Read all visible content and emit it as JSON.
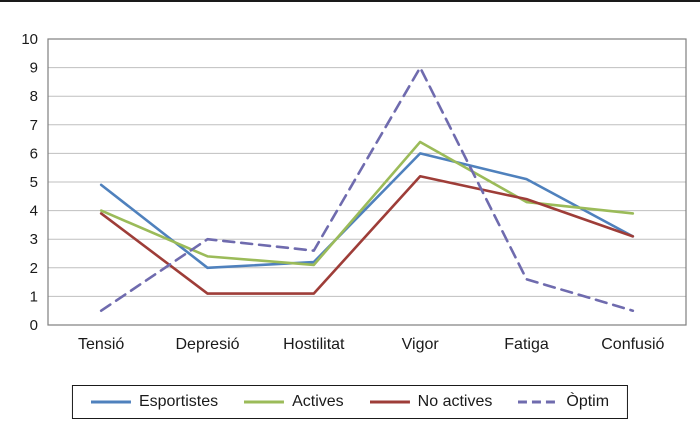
{
  "chart_data": {
    "type": "line",
    "categories": [
      "Tensió",
      "Depresió",
      "Hostilitat",
      "Vigor",
      "Fatiga",
      "Confusió"
    ],
    "series": [
      {
        "name": "Esportistes",
        "color": "#4f81bd",
        "dashed": false,
        "values": [
          4.9,
          2.0,
          2.2,
          6.0,
          5.1,
          3.1
        ]
      },
      {
        "name": "Actives",
        "color": "#9bbb59",
        "dashed": false,
        "values": [
          4.0,
          2.4,
          2.1,
          6.4,
          4.3,
          3.9
        ]
      },
      {
        "name": "No actives",
        "color": "#9e3d38",
        "dashed": false,
        "values": [
          3.9,
          1.1,
          1.1,
          5.2,
          4.4,
          3.1
        ]
      },
      {
        "name": "Òptim",
        "color": "#6f6bae",
        "dashed": true,
        "values": [
          0.5,
          3.0,
          2.6,
          9.0,
          1.6,
          0.5
        ]
      }
    ],
    "title": "",
    "xlabel": "",
    "ylabel": "",
    "ylim": [
      0,
      10
    ],
    "ytick_step": 1,
    "grid": true,
    "legend_position": "bottom",
    "gridline_color": "#bfbfbf",
    "plot_border_color": "#7f7f7f"
  }
}
